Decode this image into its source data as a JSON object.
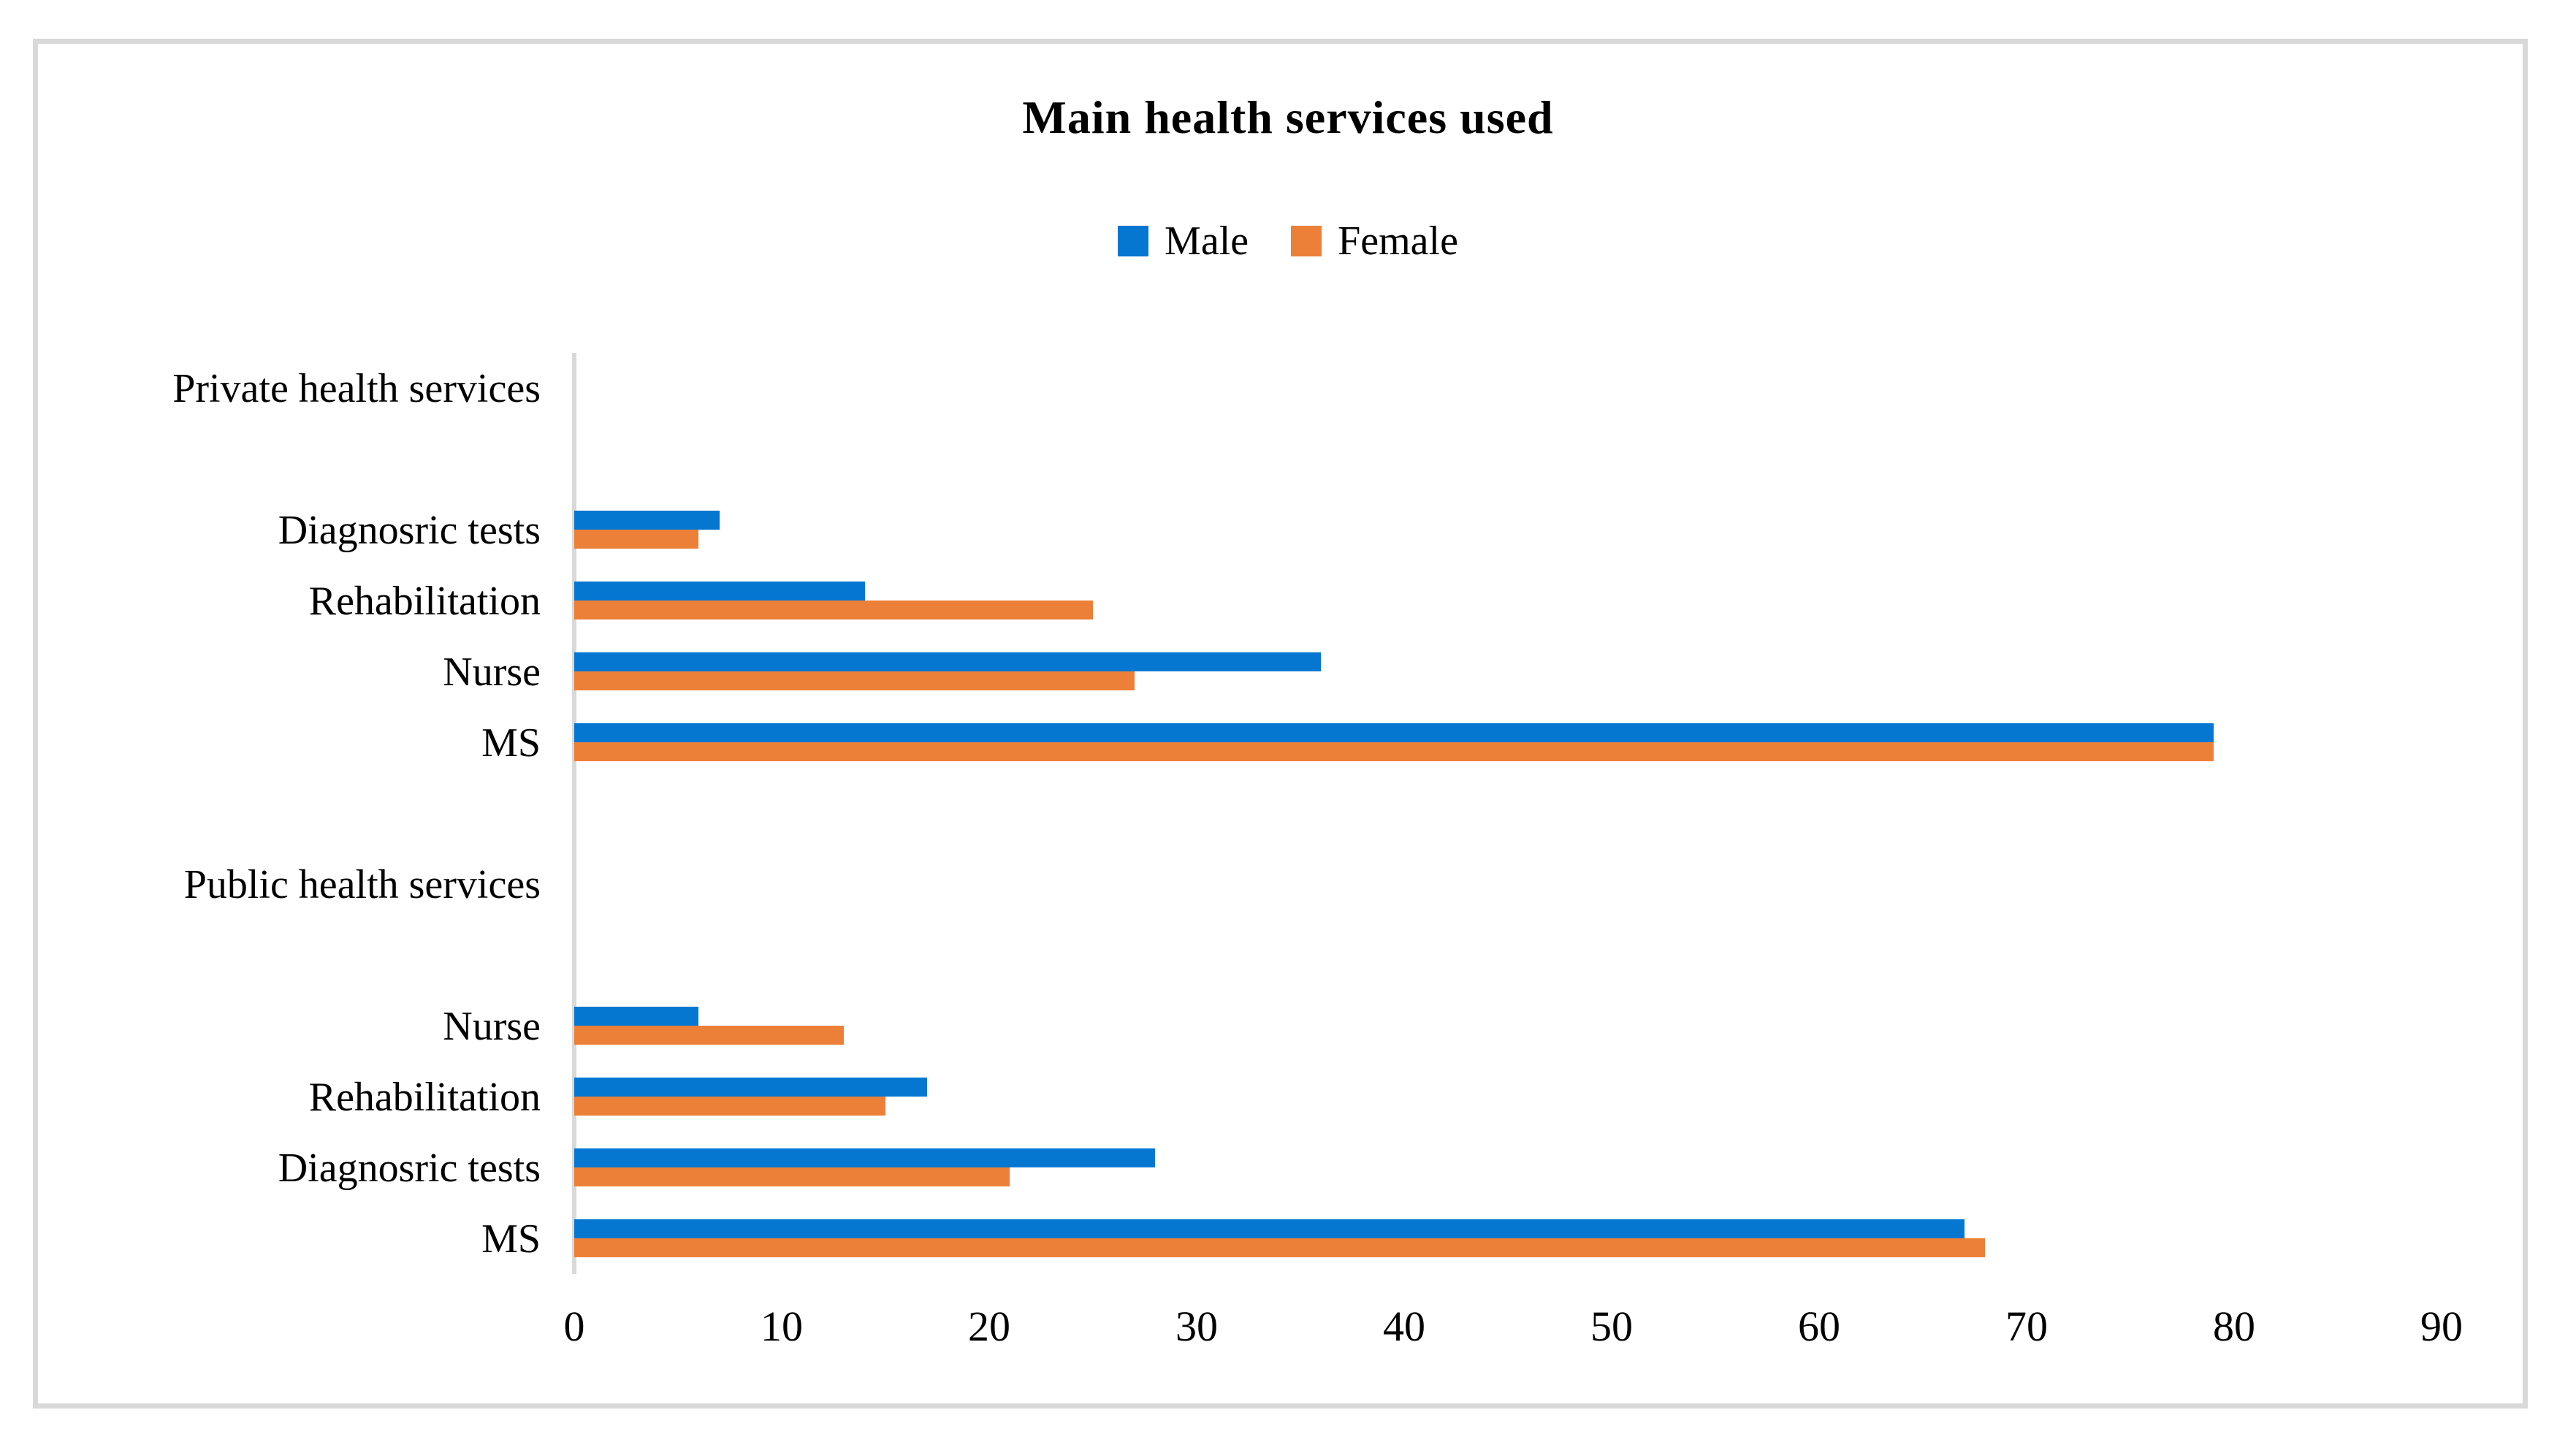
{
  "title": "Main health services used",
  "chart_data": {
    "type": "bar",
    "orientation": "horizontal",
    "title": "Main health services used",
    "legend_position": "top-center",
    "grid": false,
    "plot_background": "#ffffff",
    "axis_color": "#d9d9d9",
    "frame_border_color": "#d9d9d9",
    "series": [
      {
        "name": "Male",
        "color": "#0677d1"
      },
      {
        "name": "Female",
        "color": "#ec8038"
      }
    ],
    "x_axis": {
      "min": 0,
      "max": 90,
      "tick_interval": 10,
      "ticks": [
        "0",
        "10",
        "20",
        "30",
        "40",
        "50",
        "60",
        "70",
        "80",
        "90"
      ]
    },
    "rows": [
      {
        "label": "Private health services",
        "role": "group-header",
        "values": null
      },
      {
        "label": "",
        "role": "spacer",
        "values": null
      },
      {
        "label": "Diagnosric tests",
        "role": "category",
        "values": [
          7,
          6
        ]
      },
      {
        "label": "Rehabilitation",
        "role": "category",
        "values": [
          14,
          25
        ]
      },
      {
        "label": "Nurse",
        "role": "category",
        "values": [
          36,
          27
        ]
      },
      {
        "label": "MS",
        "role": "category",
        "values": [
          79,
          79
        ]
      },
      {
        "label": "",
        "role": "spacer",
        "values": null
      },
      {
        "label": "Public health services",
        "role": "group-header",
        "values": null
      },
      {
        "label": "",
        "role": "spacer",
        "values": null
      },
      {
        "label": "Nurse",
        "role": "category",
        "values": [
          6,
          13
        ]
      },
      {
        "label": "Rehabilitation",
        "role": "category",
        "values": [
          17,
          15
        ]
      },
      {
        "label": "Diagnosric tests",
        "role": "category",
        "values": [
          28,
          21
        ]
      },
      {
        "label": "MS",
        "role": "category",
        "values": [
          67,
          68
        ]
      }
    ]
  }
}
